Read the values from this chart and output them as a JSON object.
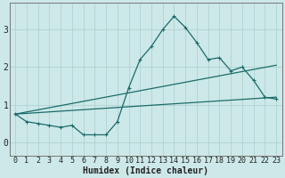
{
  "xlabel": "Humidex (Indice chaleur)",
  "ylabel": "",
  "xlim": [
    -0.5,
    23.5
  ],
  "ylim": [
    -0.35,
    3.7
  ],
  "yticks": [
    0,
    1,
    2,
    3
  ],
  "xticks": [
    0,
    1,
    2,
    3,
    4,
    5,
    6,
    7,
    8,
    9,
    10,
    11,
    12,
    13,
    14,
    15,
    16,
    17,
    18,
    19,
    20,
    21,
    22,
    23
  ],
  "bg_color": "#cde8e8",
  "grid_color": "#aacfcf",
  "line_color": "#1a6b6b",
  "series1_x": [
    0,
    1,
    2,
    3,
    4,
    5,
    6,
    7,
    8,
    9,
    10,
    11,
    12,
    13,
    14,
    15,
    16,
    17,
    18,
    19,
    20,
    21,
    22,
    23
  ],
  "series1_y": [
    0.75,
    0.55,
    0.5,
    0.45,
    0.4,
    0.45,
    0.2,
    0.2,
    0.2,
    0.55,
    1.45,
    2.2,
    2.55,
    3.0,
    3.35,
    3.05,
    2.65,
    2.2,
    2.25,
    1.9,
    2.0,
    1.65,
    1.2,
    1.15
  ],
  "series2_x": [
    0,
    23
  ],
  "series2_y": [
    0.75,
    2.05
  ],
  "series3_x": [
    0,
    23
  ],
  "series3_y": [
    0.75,
    1.2
  ],
  "marker": "+",
  "markersize": 3.5,
  "linewidth": 0.9,
  "xlabel_fontsize": 7,
  "tick_fontsize": 6,
  "ytick_fontsize": 7
}
